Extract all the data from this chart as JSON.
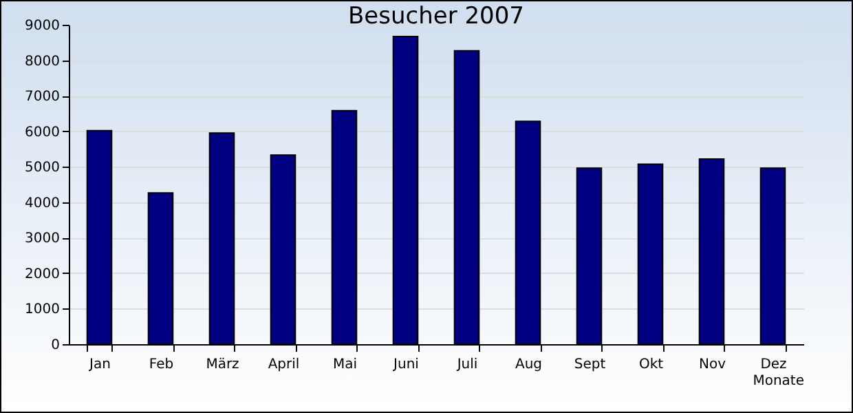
{
  "chart_data": {
    "type": "bar",
    "title": "Besucher 2007",
    "xlabel": "Monate",
    "categories": [
      "Jan",
      "Feb",
      "März",
      "April",
      "Mai",
      "Juni",
      "Juli",
      "Aug",
      "Sept",
      "Okt",
      "Nov",
      "Dez"
    ],
    "values": [
      6020,
      4260,
      5950,
      5330,
      6580,
      8670,
      8270,
      6280,
      4960,
      5070,
      5220,
      4960
    ],
    "color": "#000080",
    "ylim": [
      0,
      9000
    ],
    "yticks": [
      0,
      1000,
      2000,
      3000,
      4000,
      5000,
      6000,
      7000,
      8000,
      9000
    ],
    "grid": "y"
  }
}
